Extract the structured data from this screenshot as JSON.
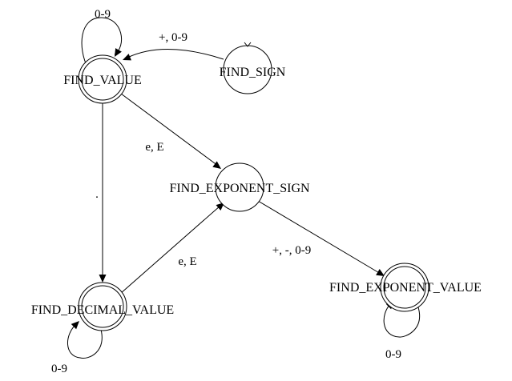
{
  "diagram": {
    "type": "finite-state-machine",
    "states": {
      "find_value": {
        "label": "FIND_VALUE",
        "accepting": true
      },
      "find_sign": {
        "label": "FIND_SIGN",
        "accepting": false,
        "initial": true
      },
      "find_exponent_sign": {
        "label": "FIND_EXPONENT_SIGN",
        "accepting": false
      },
      "find_decimal_value": {
        "label": "FIND_DECIMAL_VALUE",
        "accepting": true
      },
      "find_exponent_value": {
        "label": "FIND_EXPONENT_VALUE",
        "accepting": true
      }
    },
    "transitions": {
      "value_self": {
        "from": "FIND_VALUE",
        "to": "FIND_VALUE",
        "label": "0-9"
      },
      "sign_to_value": {
        "from": "FIND_SIGN",
        "to": "FIND_VALUE",
        "label": "+, 0-9"
      },
      "value_to_exp_sign": {
        "from": "FIND_VALUE",
        "to": "FIND_EXPONENT_SIGN",
        "label": "e, E"
      },
      "value_to_decimal": {
        "from": "FIND_VALUE",
        "to": "FIND_DECIMAL_VALUE",
        "label": "."
      },
      "decimal_to_exp_sign": {
        "from": "FIND_DECIMAL_VALUE",
        "to": "FIND_EXPONENT_SIGN",
        "label": "e, E"
      },
      "decimal_self": {
        "from": "FIND_DECIMAL_VALUE",
        "to": "FIND_DECIMAL_VALUE",
        "label": "0-9"
      },
      "exp_sign_to_exp_value": {
        "from": "FIND_EXPONENT_SIGN",
        "to": "FIND_EXPONENT_VALUE",
        "label": "+, -, 0-9"
      },
      "exp_value_self": {
        "from": "FIND_EXPONENT_VALUE",
        "to": "FIND_EXPONENT_VALUE",
        "label": "0-9"
      }
    }
  }
}
